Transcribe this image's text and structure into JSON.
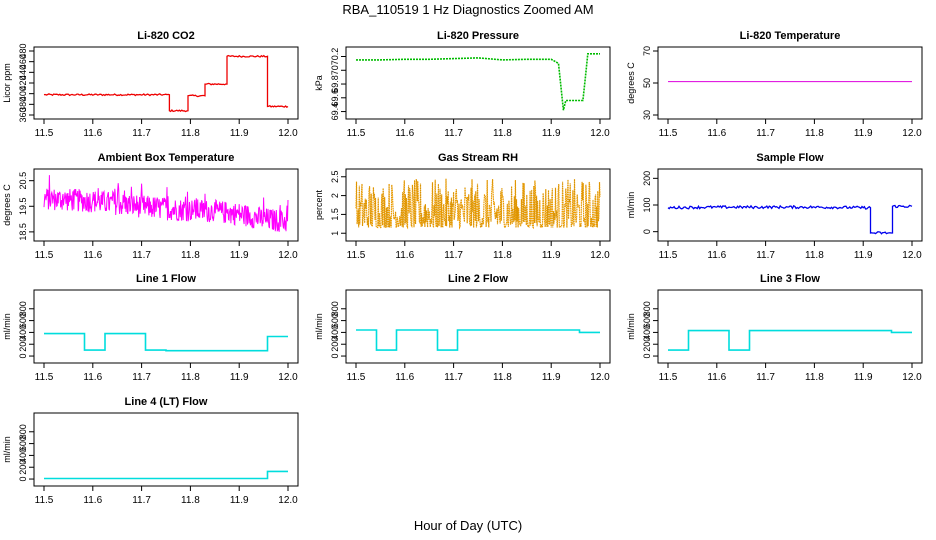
{
  "figure": {
    "title": "RBA_110519  1 Hz Diagnostics Zoomed AM",
    "xlabel": "Hour of Day (UTC)"
  },
  "chart_data": [
    {
      "id": "co2",
      "type": "line",
      "title": "Li-820 CO2",
      "ylabel": "Licor ppm",
      "color": "#ee0000",
      "xlim": [
        11.5,
        12.0
      ],
      "ylim": [
        360,
        480
      ],
      "xticks": [
        "11.5",
        "11.6",
        "11.7",
        "11.8",
        "11.9",
        "12.0"
      ],
      "yticks": [
        360,
        380,
        400,
        420,
        440,
        460,
        480
      ],
      "series": [
        {
          "x": [
            11.5,
            11.757,
            11.757,
            11.795,
            11.795,
            11.83,
            11.83,
            11.875,
            11.875,
            11.958,
            11.958,
            12.0
          ],
          "y": [
            398,
            398,
            368,
            368,
            396,
            396,
            418,
            418,
            470,
            470,
            376,
            376
          ]
        }
      ]
    },
    {
      "id": "pressure",
      "type": "line",
      "title": "Li-820 Pressure",
      "ylabel": "kPa",
      "color": "#00bb00",
      "xlim": [
        11.5,
        12.0
      ],
      "ylim": [
        69.35,
        70.28
      ],
      "xticks": [
        "11.5",
        "11.6",
        "11.7",
        "11.8",
        "11.9",
        "12.0"
      ],
      "yticks": [
        69.4,
        69.6,
        69.8,
        70.0,
        70.2
      ],
      "series": [
        {
          "x": [
            11.5,
            11.55,
            11.6,
            11.65,
            11.7,
            11.75,
            11.8,
            11.85,
            11.9,
            11.915,
            11.925,
            11.93,
            11.965,
            11.97,
            11.975,
            12.0
          ],
          "y": [
            70.15,
            70.15,
            70.16,
            70.16,
            70.17,
            70.18,
            70.15,
            70.16,
            70.16,
            70.1,
            69.42,
            69.56,
            69.56,
            69.9,
            70.24,
            70.24
          ]
        }
      ]
    },
    {
      "id": "temp820",
      "type": "line",
      "title": "Li-820 Temperature",
      "ylabel": "degrees C",
      "color": "#dd00dd",
      "xlim": [
        11.5,
        12.0
      ],
      "ylim": [
        30,
        70
      ],
      "xticks": [
        "11.5",
        "11.6",
        "11.7",
        "11.8",
        "11.9",
        "12.0"
      ],
      "yticks": [
        30,
        50,
        70
      ],
      "series": [
        {
          "x": [
            11.5,
            12.0
          ],
          "y": [
            50.9,
            50.9
          ]
        }
      ]
    },
    {
      "id": "ambient",
      "type": "line",
      "title": "Ambient Box Temperature",
      "ylabel": "degrees C",
      "color": "#ff00ff",
      "xlim": [
        11.5,
        12.0
      ],
      "ylim": [
        18.3,
        20.8
      ],
      "xticks": [
        "11.5",
        "11.6",
        "11.7",
        "11.8",
        "11.9",
        "12.0"
      ],
      "yticks": [
        18.5,
        19.5,
        20.5
      ],
      "series": [
        {
          "x": [
            11.5,
            11.55,
            11.6,
            11.65,
            11.7,
            11.75,
            11.8,
            11.85,
            11.9,
            11.95,
            12.0
          ],
          "y": [
            19.8,
            19.75,
            19.7,
            19.6,
            19.5,
            19.4,
            19.35,
            19.3,
            19.2,
            19.0,
            18.9
          ]
        }
      ]
    },
    {
      "id": "rh",
      "type": "line",
      "title": "Gas Stream RH",
      "ylabel": "percent",
      "color": "#ffa500",
      "xlim": [
        11.5,
        12.0
      ],
      "ylim": [
        0.9,
        2.6
      ],
      "xticks": [
        "11.5",
        "11.6",
        "11.7",
        "11.8",
        "11.9",
        "12.0"
      ],
      "yticks": [
        1.0,
        1.5,
        2.0,
        2.5
      ],
      "series": [
        {
          "x": [
            11.5,
            12.0
          ],
          "y": [
            1.5,
            1.5
          ]
        }
      ]
    },
    {
      "id": "sample",
      "type": "line",
      "title": "Sample Flow",
      "ylabel": "ml/min",
      "color": "#0000ee",
      "xlim": [
        11.5,
        12.0
      ],
      "ylim": [
        -20,
        220
      ],
      "xticks": [
        "11.5",
        "11.6",
        "11.7",
        "11.8",
        "11.9",
        "12.0"
      ],
      "yticks": [
        0,
        100,
        200
      ],
      "series": [
        {
          "x": [
            11.5,
            11.6,
            11.7,
            11.8,
            11.9,
            11.915,
            11.915,
            11.96,
            11.96,
            12.0
          ],
          "y": [
            90,
            92,
            92,
            92,
            90,
            90,
            -5,
            -5,
            95,
            95
          ]
        }
      ]
    },
    {
      "id": "line1",
      "type": "line",
      "title": "Line 1 Flow",
      "ylabel": "ml/min",
      "color": "#00dddd",
      "xlim": [
        11.5,
        12.0
      ],
      "ylim": [
        -50,
        1050
      ],
      "xticks": [
        "11.5",
        "11.6",
        "11.7",
        "11.8",
        "11.9",
        "12.0"
      ],
      "yticks": [
        0,
        200,
        400,
        600,
        800
      ],
      "series": [
        {
          "x": [
            11.5,
            11.583,
            11.583,
            11.625,
            11.625,
            11.708,
            11.708,
            11.75,
            11.75,
            11.958,
            11.958,
            12.0
          ],
          "y": [
            380,
            380,
            100,
            100,
            380,
            380,
            100,
            100,
            90,
            90,
            330,
            330
          ]
        }
      ]
    },
    {
      "id": "line2",
      "type": "line",
      "title": "Line 2 Flow",
      "ylabel": "ml/min",
      "color": "#00dddd",
      "xlim": [
        11.5,
        12.0
      ],
      "ylim": [
        -50,
        1050
      ],
      "xticks": [
        "11.5",
        "11.6",
        "11.7",
        "11.8",
        "11.9",
        "12.0"
      ],
      "yticks": [
        0,
        200,
        400,
        600,
        800
      ],
      "series": [
        {
          "x": [
            11.5,
            11.542,
            11.542,
            11.583,
            11.583,
            11.667,
            11.667,
            11.708,
            11.708,
            11.958,
            11.958,
            12.0
          ],
          "y": [
            440,
            440,
            100,
            100,
            440,
            440,
            100,
            100,
            440,
            440,
            400,
            400
          ]
        }
      ]
    },
    {
      "id": "line3",
      "type": "line",
      "title": "Line 3 Flow",
      "ylabel": "ml/min",
      "color": "#00dddd",
      "xlim": [
        11.5,
        12.0
      ],
      "ylim": [
        -50,
        1050
      ],
      "xticks": [
        "11.5",
        "11.6",
        "11.7",
        "11.8",
        "11.9",
        "12.0"
      ],
      "yticks": [
        0,
        200,
        400,
        600,
        800
      ],
      "series": [
        {
          "x": [
            11.5,
            11.542,
            11.542,
            11.625,
            11.625,
            11.667,
            11.667,
            11.958,
            11.958,
            12.0
          ],
          "y": [
            100,
            100,
            430,
            430,
            100,
            100,
            430,
            430,
            400,
            400
          ]
        }
      ]
    },
    {
      "id": "line4",
      "type": "line",
      "title": "Line 4 (LT) Flow",
      "ylabel": "ml/min",
      "color": "#00dddd",
      "xlim": [
        11.5,
        12.0
      ],
      "ylim": [
        -50,
        1050
      ],
      "xticks": [
        "11.5",
        "11.6",
        "11.7",
        "11.8",
        "11.9",
        "12.0"
      ],
      "yticks": [
        0,
        200,
        400,
        600,
        800
      ],
      "series": [
        {
          "x": [
            11.5,
            11.958,
            11.958,
            12.0
          ],
          "y": [
            10,
            10,
            130,
            130
          ]
        }
      ]
    }
  ]
}
